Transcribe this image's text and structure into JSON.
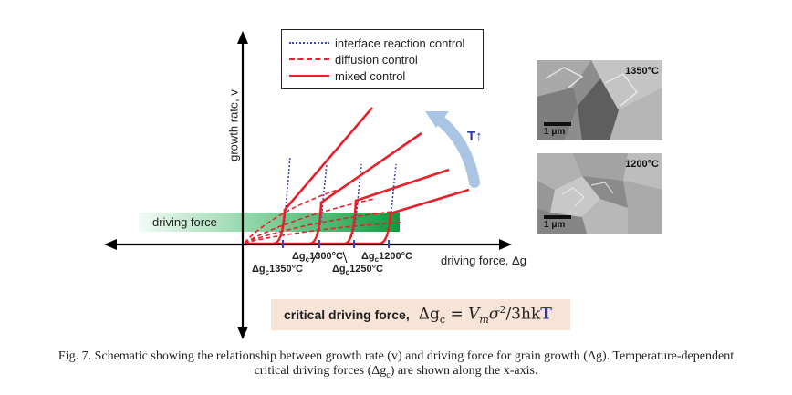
{
  "figure": {
    "y_axis_label": "growth rate, v",
    "x_axis_label": "driving force, Δg",
    "driving_force_band_label": "driving force",
    "temperature_indicator": "T↑",
    "legend": [
      {
        "label": "interface reaction control",
        "style": "dotted",
        "color": "#3b46c4"
      },
      {
        "label": "diffusion control",
        "style": "dashed",
        "color": "#e8202a"
      },
      {
        "label": "mixed control",
        "style": "solid",
        "color": "#e8202a"
      }
    ],
    "critical_ticks": [
      {
        "symbol": "Δg",
        "subscript": "c",
        "temp": "1350°C"
      },
      {
        "symbol": "Δg",
        "subscript": "c",
        "temp": "1300°C"
      },
      {
        "symbol": "Δg",
        "subscript": "c",
        "temp": "1250°C"
      },
      {
        "symbol": "Δg",
        "subscript": "c",
        "temp": "1200°C"
      }
    ],
    "formula_label": "critical driving force,",
    "formula": {
      "lhs": "Δg",
      "lhs_sub": "c",
      "eq": " = ",
      "vm": "V",
      "vm_sub": "m",
      "sigma": "σ",
      "sigma_pow": "2",
      "rest": "/3hk",
      "T": "T"
    },
    "micrographs": [
      {
        "temperature": "1350°C",
        "scale_bar": "1 μm"
      },
      {
        "temperature": "1200°C",
        "scale_bar": "1 μm"
      }
    ],
    "colors": {
      "red": "#e8202a",
      "blue_dotted": "#3b46c4",
      "green_band": "#1aa84a",
      "arrow": "#aac4e4"
    }
  },
  "caption": {
    "line1": "Fig. 7. Schematic showing the relationship between growth rate (v) and driving force for grain growth (Δg). Temperature-dependent",
    "line2": "critical driving forces (Δg",
    "line2_sub": "c",
    "line2_end": ") are shown along the x-axis."
  }
}
